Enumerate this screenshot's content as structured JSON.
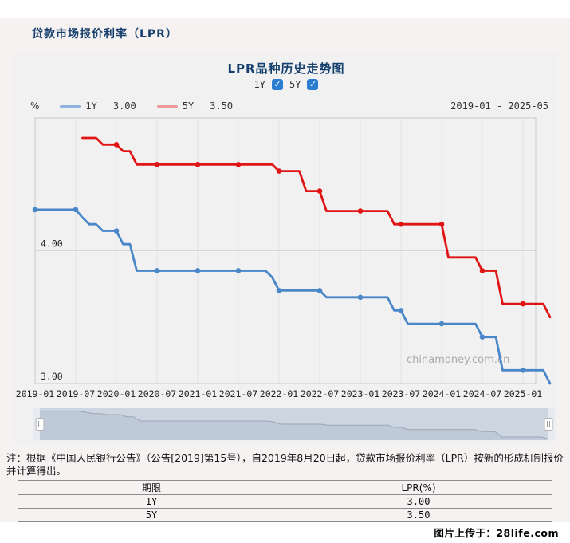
{
  "page": {
    "title": "贷款市场报价利率（LPR）",
    "footer_credit": "图片上传于：28life.com"
  },
  "chart": {
    "title": "LPR品种历史走势图",
    "toggles": [
      {
        "label": "1Y",
        "checked": true
      },
      {
        "label": "5Y",
        "checked": true
      }
    ],
    "unit_label": "%",
    "legend": [
      {
        "label": "1Y",
        "value": "3.00",
        "line_color": "#4a87c9",
        "swatch_color": "#8fb3dd"
      },
      {
        "label": "5Y",
        "value": "3.50",
        "line_color": "#e01414",
        "swatch_color": "#ea9a9a"
      }
    ],
    "date_range": "2019-01 - 2025-05",
    "watermark": "chinamoney.com.cn"
  },
  "chart_data": {
    "type": "line",
    "title": "LPR品种历史走势图",
    "x_start": "2019-01",
    "x_end": "2025-05",
    "months_total": 77,
    "x_tick_labels": [
      "2019-01",
      "2019-07",
      "2020-01",
      "2020-07",
      "2021-01",
      "2021-07",
      "2022-01",
      "2022-07",
      "2023-01",
      "2023-07",
      "2024-01",
      "2024-07",
      "2025-01"
    ],
    "x_tick_month_indices": [
      0,
      6,
      12,
      18,
      24,
      30,
      36,
      42,
      48,
      54,
      60,
      66,
      72
    ],
    "ylim": [
      3.0,
      5.0
    ],
    "y_ticks": [
      4.0,
      3.0
    ],
    "y_tick_labels": [
      "4.00",
      "3.00"
    ],
    "grid": true,
    "legend_position": "top-left",
    "series": [
      {
        "name": "1Y",
        "color": "#4a87c9",
        "start_month_index": 0,
        "monthly_values": [
          4.31,
          4.31,
          4.31,
          4.31,
          4.31,
          4.31,
          4.31,
          4.25,
          4.2,
          4.2,
          4.15,
          4.15,
          4.15,
          4.05,
          4.05,
          3.85,
          3.85,
          3.85,
          3.85,
          3.85,
          3.85,
          3.85,
          3.85,
          3.85,
          3.85,
          3.85,
          3.85,
          3.85,
          3.85,
          3.85,
          3.85,
          3.85,
          3.85,
          3.85,
          3.85,
          3.8,
          3.7,
          3.7,
          3.7,
          3.7,
          3.7,
          3.7,
          3.7,
          3.65,
          3.65,
          3.65,
          3.65,
          3.65,
          3.65,
          3.65,
          3.65,
          3.65,
          3.65,
          3.55,
          3.55,
          3.45,
          3.45,
          3.45,
          3.45,
          3.45,
          3.45,
          3.45,
          3.45,
          3.45,
          3.45,
          3.45,
          3.35,
          3.35,
          3.35,
          3.1,
          3.1,
          3.1,
          3.1,
          3.1,
          3.1,
          3.1,
          3.0
        ]
      },
      {
        "name": "5Y",
        "color": "#e01414",
        "start_month_index": 7,
        "monthly_values": [
          4.85,
          4.85,
          4.85,
          4.8,
          4.8,
          4.8,
          4.75,
          4.75,
          4.65,
          4.65,
          4.65,
          4.65,
          4.65,
          4.65,
          4.65,
          4.65,
          4.65,
          4.65,
          4.65,
          4.65,
          4.65,
          4.65,
          4.65,
          4.65,
          4.65,
          4.65,
          4.65,
          4.65,
          4.65,
          4.6,
          4.6,
          4.6,
          4.6,
          4.45,
          4.45,
          4.45,
          4.3,
          4.3,
          4.3,
          4.3,
          4.3,
          4.3,
          4.3,
          4.3,
          4.3,
          4.3,
          4.2,
          4.2,
          4.2,
          4.2,
          4.2,
          4.2,
          4.2,
          4.2,
          3.95,
          3.95,
          3.95,
          3.95,
          3.95,
          3.85,
          3.85,
          3.85,
          3.6,
          3.6,
          3.6,
          3.6,
          3.6,
          3.6,
          3.6,
          3.5
        ]
      }
    ]
  },
  "note": {
    "text": "注：根据《中国人民银行公告》（公告[2019]第15号），自2019年8月20日起，贷款市场报价利率（LPR）按新的形成机制报价并计算得出。"
  },
  "table": {
    "columns": [
      "期限",
      "LPR(%)"
    ],
    "rows": [
      [
        "1Y",
        "3.00"
      ],
      [
        "5Y",
        "3.50"
      ]
    ]
  }
}
